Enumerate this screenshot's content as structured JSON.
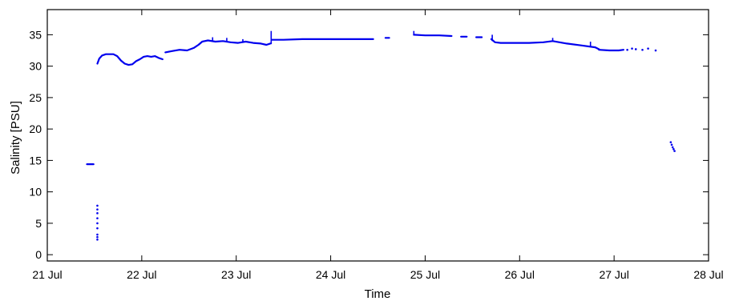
{
  "chart_data": {
    "type": "line",
    "title": "",
    "xlabel": "Time",
    "ylabel": "Salinity [PSU]",
    "x_unit": "days",
    "xlim": [
      "21 Jul",
      "28 Jul"
    ],
    "ylim": [
      -1,
      39
    ],
    "x_ticks": [
      "21 Jul",
      "22 Jul",
      "23 Jul",
      "24 Jul",
      "25 Jul",
      "26 Jul",
      "27 Jul",
      "28 Jul"
    ],
    "y_ticks": [
      0,
      5,
      10,
      15,
      20,
      25,
      30,
      35
    ],
    "grid": false,
    "legend": "none",
    "color": "#0000ee",
    "series": [
      {
        "segments": [
          {
            "x": [
              "21.42 Jul",
              "21.49 Jul"
            ],
            "y": [
              14.4,
              14.4
            ]
          },
          {
            "x": [
              "21.53 Jul",
              "21.55 Jul",
              "21.58 Jul",
              "21.62 Jul",
              "21.66 Jul",
              "21.70 Jul",
              "21.74 Jul",
              "21.78 Jul",
              "21.82 Jul",
              "21.86 Jul",
              "21.90 Jul",
              "21.94 Jul",
              "21.98 Jul",
              "22.02 Jul",
              "22.06 Jul",
              "22.10 Jul",
              "22.14 Jul",
              "22.18 Jul",
              "22.22 Jul"
            ],
            "y": [
              30.4,
              31.2,
              31.7,
              31.9,
              31.9,
              31.9,
              31.6,
              30.9,
              30.4,
              30.2,
              30.3,
              30.8,
              31.1,
              31.5,
              31.6,
              31.5,
              31.6,
              31.3,
              31.1
            ]
          },
          {
            "x": [
              "22.25 Jul",
              "22.32 Jul",
              "22.40 Jul",
              "22.48 Jul",
              "22.55 Jul",
              "22.60 Jul",
              "22.64 Jul",
              "22.70 Jul",
              "22.78 Jul",
              "22.86 Jul",
              "22.94 Jul",
              "23.02 Jul",
              "23.10 Jul",
              "23.18 Jul",
              "23.26 Jul",
              "23.32 Jul",
              "23.36 Jul"
            ],
            "y": [
              32.2,
              32.4,
              32.6,
              32.5,
              32.9,
              33.4,
              33.9,
              34.1,
              33.9,
              34.0,
              33.8,
              33.7,
              33.9,
              33.7,
              33.6,
              33.4,
              33.6
            ]
          },
          {
            "x": [
              "23.38 Jul",
              "23.50 Jul",
              "23.70 Jul",
              "23.90 Jul",
              "24.10 Jul",
              "24.30 Jul",
              "24.45 Jul"
            ],
            "y": [
              34.2,
              34.2,
              34.3,
              34.3,
              34.3,
              34.3,
              34.3
            ]
          },
          {
            "x": [
              "24.58 Jul",
              "24.62 Jul"
            ],
            "y": [
              34.5,
              34.5
            ]
          },
          {
            "x": [
              "24.88 Jul",
              "25.00 Jul",
              "25.15 Jul",
              "25.28 Jul"
            ],
            "y": [
              35.0,
              34.9,
              34.9,
              34.8
            ]
          },
          {
            "x": [
              "25.38 Jul",
              "25.44 Jul"
            ],
            "y": [
              34.7,
              34.7
            ]
          },
          {
            "x": [
              "25.54 Jul",
              "25.60 Jul"
            ],
            "y": [
              34.6,
              34.6
            ]
          },
          {
            "x": [
              "25.70 Jul",
              "25.74 Jul",
              "25.80 Jul",
              "25.95 Jul",
              "26.10 Jul",
              "26.25 Jul",
              "26.35 Jul",
              "26.50 Jul",
              "26.65 Jul",
              "26.80 Jul",
              "26.84 Jul"
            ],
            "y": [
              34.3,
              33.8,
              33.7,
              33.7,
              33.7,
              33.8,
              34.0,
              33.6,
              33.3,
              33.0,
              32.7
            ]
          },
          {
            "x": [
              "26.84 Jul",
              "26.95 Jul",
              "27.05 Jul",
              "27.10 Jul"
            ],
            "y": [
              32.6,
              32.5,
              32.5,
              32.6
            ]
          }
        ],
        "points": [
          {
            "x": [
              "21.53 Jul",
              "21.53 Jul",
              "21.53 Jul",
              "21.53 Jul",
              "21.53 Jul",
              "21.53 Jul",
              "21.53 Jul",
              "21.53 Jul",
              "21.53 Jul"
            ],
            "y": [
              2.4,
              2.8,
              3.2,
              4.2,
              5.0,
              5.8,
              6.6,
              7.2,
              7.8
            ]
          },
          {
            "x": [
              "27.14 Jul",
              "27.19 Jul",
              "27.23 Jul",
              "27.30 Jul",
              "27.36 Jul",
              "27.44 Jul"
            ],
            "y": [
              32.6,
              32.8,
              32.7,
              32.6,
              32.8,
              32.5
            ]
          },
          {
            "x": [
              "27.60 Jul",
              "27.61 Jul",
              "27.62 Jul",
              "27.63 Jul",
              "27.64 Jul"
            ],
            "y": [
              17.9,
              17.5,
              17.1,
              16.8,
              16.5
            ]
          }
        ],
        "spikes": [
          {
            "x": "23.37 Jul",
            "y": [
              33.5,
              35.6
            ]
          },
          {
            "x": "22.75 Jul",
            "y": [
              34.0,
              34.6
            ]
          },
          {
            "x": "22.90 Jul",
            "y": [
              33.9,
              34.5
            ]
          },
          {
            "x": "23.07 Jul",
            "y": [
              33.8,
              34.3
            ]
          },
          {
            "x": "24.88 Jul",
            "y": [
              34.9,
              35.6
            ]
          },
          {
            "x": "25.71 Jul",
            "y": [
              34.0,
              35.0
            ]
          },
          {
            "x": "26.35 Jul",
            "y": [
              33.9,
              34.5
            ]
          },
          {
            "x": "26.75 Jul",
            "y": [
              33.2,
              33.9
            ]
          }
        ]
      }
    ]
  }
}
